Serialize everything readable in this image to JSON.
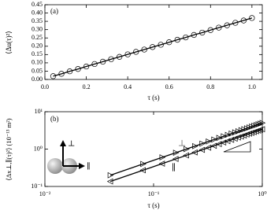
{
  "chart_data": [
    {
      "type": "line",
      "panel_label": "(a)",
      "x_label": "τ (s)",
      "y_label": "⟨Δu(τ)²⟩",
      "xscale": "linear",
      "xlim": [
        0,
        1.05
      ],
      "ylim": [
        0,
        0.45
      ],
      "xticks": [
        {
          "value": 0,
          "label": "0.0"
        },
        {
          "value": 0.2,
          "label": "0.2"
        },
        {
          "value": 0.4,
          "label": "0.4"
        },
        {
          "value": 0.6,
          "label": "0.6"
        },
        {
          "value": 0.8,
          "label": "0.8"
        },
        {
          "value": 1.0,
          "label": "1.0"
        }
      ],
      "yticks": [
        {
          "value": 0,
          "label": "0.00"
        },
        {
          "value": 0.05,
          "label": "0.05"
        },
        {
          "value": 0.1,
          "label": "0.10"
        },
        {
          "value": 0.15,
          "label": "0.15"
        },
        {
          "value": 0.2,
          "label": "0.20"
        },
        {
          "value": 0.25,
          "label": "0.25"
        },
        {
          "value": 0.3,
          "label": "0.30"
        },
        {
          "value": 0.35,
          "label": "0.35"
        },
        {
          "value": 0.4,
          "label": "0.40"
        },
        {
          "value": 0.45,
          "label": "0.45"
        }
      ],
      "series": [
        {
          "color": "#000000",
          "marker": "circle",
          "x": [
            0.04,
            0.08,
            0.12,
            0.16,
            0.2,
            0.24,
            0.28,
            0.32,
            0.36,
            0.4,
            0.44,
            0.48,
            0.52,
            0.56,
            0.6,
            0.64,
            0.68,
            0.72,
            0.76,
            0.8,
            0.84,
            0.88,
            0.92,
            0.96,
            1.0
          ],
          "values": [
            0.02,
            0.034,
            0.049,
            0.063,
            0.078,
            0.093,
            0.107,
            0.122,
            0.136,
            0.151,
            0.166,
            0.18,
            0.195,
            0.209,
            0.224,
            0.239,
            0.253,
            0.268,
            0.282,
            0.297,
            0.312,
            0.326,
            0.341,
            0.355,
            0.37
          ]
        }
      ]
    },
    {
      "type": "line",
      "panel_label": "(b)",
      "x_label": "τ (s)",
      "y_label": "⟨Δx⊥,∥(τ)²⟩ (10⁻¹³ m²)",
      "xscale": "log",
      "yscale": "log",
      "xlim": [
        0.01,
        1
      ],
      "ylim": [
        0.1,
        10
      ],
      "xticks": [
        {
          "value": 0.01,
          "label": "10⁻²"
        },
        {
          "value": 0.1,
          "label": "10⁻¹"
        },
        {
          "value": 1,
          "label": "10⁰"
        }
      ],
      "yticks": [
        {
          "value": 0.1,
          "label": "10⁻¹"
        },
        {
          "value": 1,
          "label": "10⁰"
        },
        {
          "value": 10,
          "label": "10¹"
        }
      ],
      "series": [
        {
          "name": "⊥",
          "color": "#000000",
          "marker": "triangle-right",
          "x": [
            0.04,
            0.08,
            0.12,
            0.16,
            0.2,
            0.24,
            0.28,
            0.32,
            0.36,
            0.4,
            0.44,
            0.48,
            0.52,
            0.56,
            0.6,
            0.64,
            0.68,
            0.72,
            0.76,
            0.8,
            0.84,
            0.88,
            0.92,
            0.96,
            1.0
          ],
          "values": [
            0.2,
            0.4,
            0.6,
            0.8,
            1.0,
            1.2,
            1.4,
            1.6,
            1.8,
            2.0,
            2.2,
            2.4,
            2.6,
            2.8,
            3.0,
            3.2,
            3.4,
            3.6,
            3.8,
            4.0,
            4.2,
            4.4,
            4.6,
            4.8,
            5.0
          ]
        },
        {
          "name": "∥",
          "color": "#000000",
          "marker": "triangle-left",
          "x": [
            0.04,
            0.08,
            0.12,
            0.16,
            0.2,
            0.24,
            0.28,
            0.32,
            0.36,
            0.4,
            0.44,
            0.48,
            0.52,
            0.56,
            0.6,
            0.64,
            0.68,
            0.72,
            0.76,
            0.8,
            0.84,
            0.88,
            0.92,
            0.96,
            1.0
          ],
          "values": [
            0.136,
            0.272,
            0.408,
            0.544,
            0.68,
            0.816,
            0.952,
            1.088,
            1.224,
            1.36,
            1.496,
            1.632,
            1.768,
            1.904,
            2.04,
            2.176,
            2.312,
            2.448,
            2.584,
            2.72,
            2.856,
            2.992,
            3.128,
            3.264,
            3.4
          ]
        }
      ]
    }
  ]
}
